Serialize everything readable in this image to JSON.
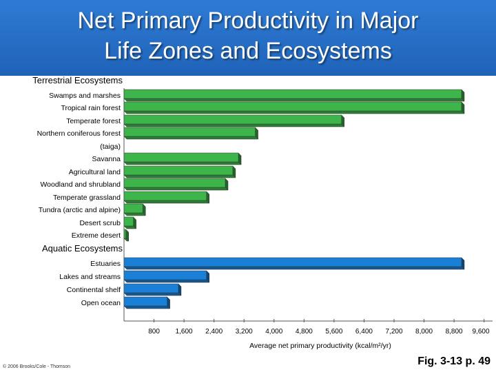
{
  "header": {
    "title": "Net Primary Productivity in Major\nLife Zones and Ecosystems"
  },
  "chart_data": {
    "type": "bar",
    "orientation": "horizontal",
    "groups": [
      {
        "label": "Terrestrial Ecosystems",
        "color": "#3db54a",
        "items": [
          {
            "label": "Swamps and marshes",
            "value": 9000
          },
          {
            "label": "Tropical rain forest",
            "value": 9000
          },
          {
            "label": "Temperate forest",
            "value": 5800
          },
          {
            "label": "Northern coniferous forest (taiga)",
            "lines": [
              "Northern coniferous forest",
              "(taiga)"
            ],
            "value": 3500
          },
          {
            "label": "Savanna",
            "value": 3050
          },
          {
            "label": "Agricultural land",
            "value": 2900
          },
          {
            "label": "Woodland and shrubland",
            "value": 2700
          },
          {
            "label": "Temperate grassland",
            "value": 2200
          },
          {
            "label": "Tundra (arctic and alpine)",
            "value": 500
          },
          {
            "label": "Desert scrub",
            "value": 250
          },
          {
            "label": "Extreme desert",
            "value": 50
          }
        ]
      },
      {
        "label": "Aquatic Ecosystems",
        "color": "#1a7fd6",
        "items": [
          {
            "label": "Estuaries",
            "value": 9000
          },
          {
            "label": "Lakes and streams",
            "value": 2200
          },
          {
            "label": "Continental shelf",
            "value": 1450
          },
          {
            "label": "Open ocean",
            "value": 1150
          }
        ]
      }
    ],
    "ticks": [
      "800",
      "1,600",
      "2,400",
      "3,200",
      "4,000",
      "4,800",
      "5,600",
      "6,400",
      "7,200",
      "8,000",
      "8,800",
      "9,600"
    ],
    "xlim": [
      0,
      9600
    ],
    "xlabel": "Average net primary productivity (kcal/m²/yr)"
  },
  "footer": {
    "copyright": "© 2006 Brooks/Cole - Thomson",
    "figure_ref": "Fig. 3-13 p. 49"
  }
}
